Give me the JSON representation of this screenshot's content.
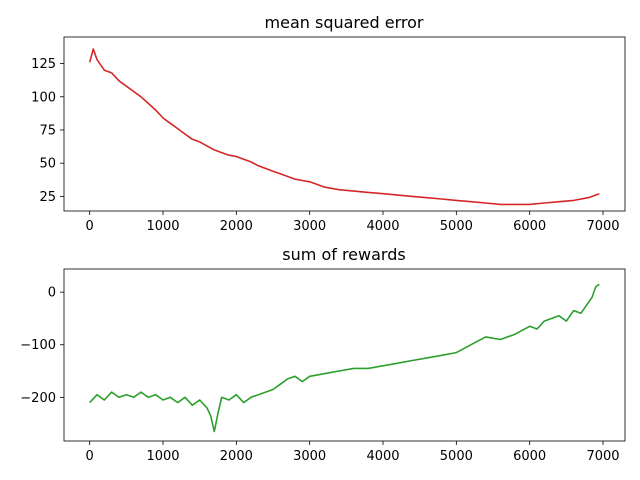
{
  "chart_data": [
    {
      "type": "line",
      "title": "mean squared error",
      "xlabel": "",
      "ylabel": "",
      "xlim": [
        -350,
        7300
      ],
      "ylim": [
        14,
        145
      ],
      "xticks": [
        0,
        1000,
        2000,
        3000,
        4000,
        5000,
        6000,
        7000
      ],
      "xtick_labels": [
        "0",
        "1000",
        "2000",
        "3000",
        "4000",
        "5000",
        "6000",
        "7000"
      ],
      "yticks": [
        25,
        50,
        75,
        100,
        125
      ],
      "ytick_labels": [
        "25",
        "50",
        "75",
        "100",
        "125"
      ],
      "grid": false,
      "series": [
        {
          "color": "#d62728",
          "x": [
            0,
            50,
            100,
            150,
            200,
            300,
            400,
            500,
            600,
            700,
            800,
            900,
            1000,
            1100,
            1200,
            1300,
            1400,
            1500,
            1600,
            1700,
            1800,
            1900,
            2000,
            2100,
            2200,
            2300,
            2400,
            2500,
            2600,
            2700,
            2800,
            2900,
            3000,
            3100,
            3200,
            3400,
            3600,
            3800,
            4000,
            4200,
            4400,
            4600,
            4800,
            5000,
            5200,
            5400,
            5600,
            5800,
            6000,
            6200,
            6400,
            6600,
            6800,
            6950
          ],
          "y": [
            126,
            136,
            128,
            124,
            120,
            118,
            112,
            108,
            104,
            100,
            95,
            90,
            84,
            80,
            76,
            72,
            68,
            66,
            63,
            60,
            58,
            56,
            55,
            53,
            51,
            48,
            46,
            44,
            42,
            40,
            38,
            37,
            36,
            34,
            32,
            30,
            29,
            28,
            27,
            26,
            25,
            24,
            23,
            22,
            21,
            20,
            19,
            19,
            19,
            20,
            21,
            22,
            24,
            27
          ]
        }
      ]
    },
    {
      "type": "line",
      "title": "sum of rewards",
      "xlabel": "",
      "ylabel": "",
      "xlim": [
        -350,
        7300
      ],
      "ylim": [
        -283,
        44
      ],
      "xticks": [
        0,
        1000,
        2000,
        3000,
        4000,
        5000,
        6000,
        7000
      ],
      "xtick_labels": [
        "0",
        "1000",
        "2000",
        "3000",
        "4000",
        "5000",
        "6000",
        "7000"
      ],
      "yticks": [
        0,
        -100,
        -200
      ],
      "ytick_labels": [
        "0",
        "−100",
        "−200"
      ],
      "grid": false,
      "series": [
        {
          "color": "#2ca02c",
          "x": [
            0,
            100,
            200,
            300,
            400,
            500,
            600,
            700,
            800,
            900,
            1000,
            1100,
            1200,
            1300,
            1400,
            1500,
            1600,
            1650,
            1700,
            1750,
            1800,
            1900,
            2000,
            2100,
            2200,
            2300,
            2400,
            2500,
            2600,
            2700,
            2800,
            2900,
            3000,
            3200,
            3400,
            3600,
            3800,
            4000,
            4200,
            4400,
            4600,
            4800,
            5000,
            5200,
            5400,
            5600,
            5800,
            6000,
            6100,
            6200,
            6300,
            6400,
            6500,
            6600,
            6700,
            6800,
            6850,
            6900,
            6950
          ],
          "y": [
            -210,
            -195,
            -205,
            -190,
            -200,
            -195,
            -200,
            -190,
            -200,
            -195,
            -205,
            -200,
            -210,
            -200,
            -215,
            -205,
            -220,
            -235,
            -265,
            -230,
            -200,
            -205,
            -195,
            -210,
            -200,
            -195,
            -190,
            -185,
            -175,
            -165,
            -160,
            -170,
            -160,
            -155,
            -150,
            -145,
            -145,
            -140,
            -135,
            -130,
            -125,
            -120,
            -115,
            -100,
            -85,
            -90,
            -80,
            -65,
            -70,
            -55,
            -50,
            -45,
            -55,
            -35,
            -40,
            -20,
            -10,
            10,
            15
          ]
        }
      ]
    }
  ]
}
